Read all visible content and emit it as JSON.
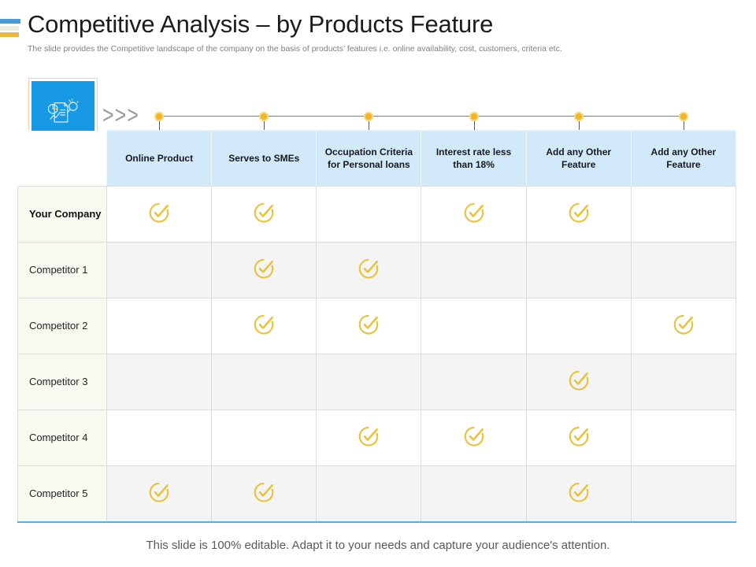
{
  "slide": {
    "title": "Competitive Analysis – by Products Feature",
    "subtitle": "The slide provides the Competitive landscape of the company on the basis of products’ features i.e. online availability, cost, customers, criteria etc.",
    "footer": "This slide is 100% editable. Adapt it to your needs and capture your audience's attention."
  },
  "decor": {
    "chevrons": ">>>",
    "analysis_icon": "document-chart-magnifier-icon",
    "timeline_marker": "yellow-dot"
  },
  "colors": {
    "accent_blue": "#4a9bd5",
    "accent_sage": "#e9eee1",
    "accent_gold": "#e9b93d",
    "icon_blue": "#1899e6",
    "header_bg": "#d2e9f9",
    "check_yellow": "#e8c23d",
    "dot_yellow": "#f2b627",
    "dot_ring": "#f8d876",
    "table_bottom": "#4db4e7",
    "label_bg": "#f8faf1",
    "alt_row": "#f4f4f4"
  },
  "table": {
    "columns": [
      "Online Product",
      "Serves to SMEs",
      "Occupation Criteria for Personal loans",
      "Interest rate less than 18%",
      "Add any Other Feature",
      "Add any Other Feature"
    ],
    "rows": [
      {
        "label": "Your Company",
        "bold": true,
        "checks": [
          1,
          1,
          0,
          1,
          1,
          0
        ]
      },
      {
        "label": "Competitor 1",
        "bold": false,
        "checks": [
          0,
          1,
          1,
          0,
          0,
          0
        ]
      },
      {
        "label": "Competitor 2",
        "bold": false,
        "checks": [
          0,
          1,
          1,
          0,
          0,
          1
        ]
      },
      {
        "label": "Competitor 3",
        "bold": false,
        "checks": [
          0,
          0,
          0,
          0,
          1,
          0
        ]
      },
      {
        "label": "Competitor 4",
        "bold": false,
        "checks": [
          0,
          0,
          1,
          1,
          1,
          0
        ]
      },
      {
        "label": "Competitor 5",
        "bold": false,
        "checks": [
          1,
          1,
          0,
          0,
          1,
          0
        ]
      }
    ]
  }
}
